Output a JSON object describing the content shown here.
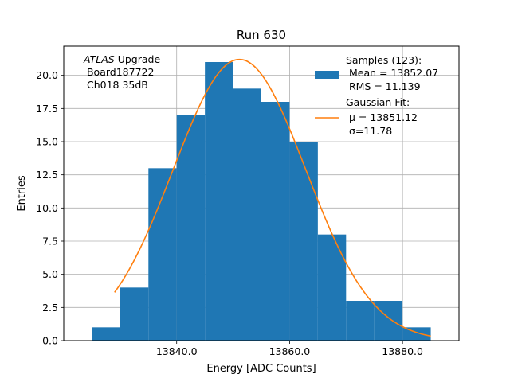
{
  "chart_data": {
    "type": "bar",
    "title": "Run 630",
    "xlabel": "Energy [ADC Counts]",
    "ylabel": "Entries",
    "xlim": [
      13820,
      13890
    ],
    "ylim": [
      0,
      22.2
    ],
    "x_ticks": [
      13840,
      13860,
      13880
    ],
    "x_tick_labels": [
      "13840.0",
      "13860.0",
      "13880.0"
    ],
    "y_ticks": [
      0,
      2.5,
      5,
      7.5,
      10,
      12.5,
      15,
      17.5,
      20
    ],
    "y_tick_labels": [
      "0.0",
      "2.5",
      "5.0",
      "7.5",
      "10.0",
      "12.5",
      "15.0",
      "17.5",
      "20.0"
    ],
    "grid": true,
    "bin_edges": [
      13825,
      13830,
      13835,
      13840,
      13845,
      13850,
      13855,
      13860,
      13865,
      13870,
      13875,
      13880,
      13885
    ],
    "counts": [
      1,
      4,
      13,
      17,
      21,
      19,
      18,
      15,
      8,
      3,
      3,
      1
    ],
    "bar_color": "#1f77b4",
    "fit": {
      "mu": 13851.12,
      "sigma": 11.78,
      "amplitude": 21.2,
      "x_range": [
        13829,
        13885
      ],
      "color": "#ff7f0e"
    },
    "annotation": {
      "italic": "ATLAS",
      "line1_rest": " Upgrade",
      "line2": " Board187722",
      "line3": " Ch018 35dB"
    },
    "legend": {
      "position": "top-right",
      "samples_line1": "Samples (123):",
      "samples_line2": " Mean = 13852.07",
      "samples_line3": " RMS = 11.139",
      "fit_line1": "Gaussian Fit:",
      "fit_line2": " μ = 13851.12",
      "fit_line3": " σ=11.78"
    }
  }
}
